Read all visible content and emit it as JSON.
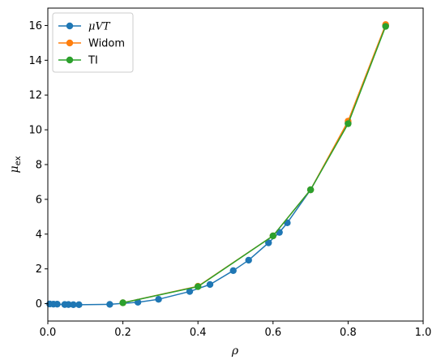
{
  "chart_data": {
    "type": "line",
    "xlabel": "ρ",
    "ylabel": "μ",
    "ylabel_sub": "ex",
    "xlim": [
      0.0,
      1.0
    ],
    "ylim": [
      -1.0,
      17.0
    ],
    "xticks": [
      0.0,
      0.2,
      0.4,
      0.6,
      0.8,
      1.0
    ],
    "xtick_labels": [
      "0.0",
      "0.2",
      "0.4",
      "0.6",
      "0.8",
      "1.0"
    ],
    "yticks": [
      0,
      2,
      4,
      6,
      8,
      10,
      12,
      14,
      16
    ],
    "ytick_labels": [
      "0",
      "2",
      "4",
      "6",
      "8",
      "10",
      "12",
      "14",
      "16"
    ],
    "grid": false,
    "legend_position": "top-left",
    "series": [
      {
        "name": "μVT",
        "color": "#1f77b4",
        "x": [
          0.005,
          0.015,
          0.025,
          0.045,
          0.055,
          0.068,
          0.083,
          0.165,
          0.24,
          0.295,
          0.378,
          0.432,
          0.494,
          0.535,
          0.588,
          0.617,
          0.638,
          0.7,
          0.8,
          0.9
        ],
        "y": [
          -0.02,
          -0.03,
          -0.03,
          -0.05,
          -0.05,
          -0.06,
          -0.06,
          -0.04,
          0.08,
          0.25,
          0.7,
          1.1,
          1.9,
          2.5,
          3.5,
          4.1,
          4.65,
          6.55,
          10.4,
          16.0
        ]
      },
      {
        "name": "Widom",
        "color": "#ff7f0e",
        "x": [
          0.2,
          0.4,
          0.6,
          0.7,
          0.8,
          0.9
        ],
        "y": [
          0.05,
          1.0,
          3.9,
          6.55,
          10.5,
          16.05
        ]
      },
      {
        "name": "TI",
        "color": "#2ca02c",
        "x": [
          0.2,
          0.4,
          0.6,
          0.7,
          0.8,
          0.9
        ],
        "y": [
          0.05,
          0.98,
          3.9,
          6.55,
          10.35,
          15.95
        ]
      }
    ]
  }
}
